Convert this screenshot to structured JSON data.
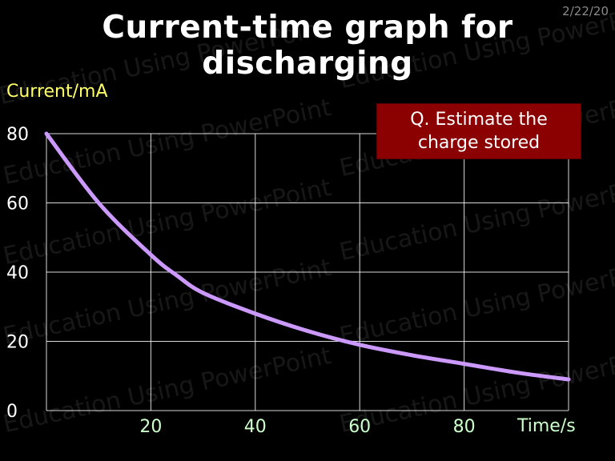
{
  "slide": {
    "date": "2/22/20",
    "title": "Current-time graph for discharging",
    "question": "Q. Estimate the charge stored",
    "watermark": "Education Using PowerPoint"
  },
  "colors": {
    "background": "#000000",
    "curve": "#cc99ff",
    "grid": "#ffffff",
    "question_box": "#8b0000",
    "ylabel": "#ffff66",
    "xlabel": "#ccffcc"
  },
  "chart_data": {
    "type": "line",
    "title": "",
    "xlabel": "Time/s",
    "ylabel": "Current/mA",
    "xlim": [
      0,
      100
    ],
    "ylim": [
      0,
      80
    ],
    "xticks": [
      20,
      40,
      60,
      80
    ],
    "yticks": [
      0,
      20,
      40,
      60,
      80
    ],
    "grid": true,
    "series": [
      {
        "x": [
          0,
          10,
          20,
          25,
          30,
          40,
          50,
          60,
          70,
          80,
          90,
          100
        ],
        "values": [
          80,
          60,
          45,
          39,
          34,
          28,
          23,
          19,
          16,
          13.5,
          11,
          9
        ]
      }
    ]
  }
}
